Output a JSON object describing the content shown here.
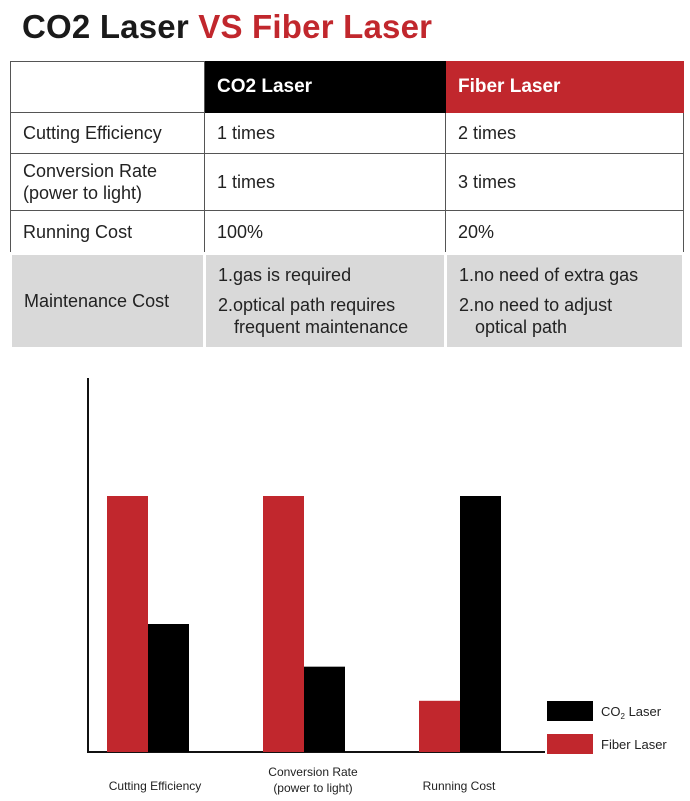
{
  "title": {
    "part1": "CO2 Laser",
    "part2": "VS Fiber Laser"
  },
  "table": {
    "header": {
      "blank": "",
      "co2": "CO2 Laser",
      "fiber": "Fiber Laser"
    },
    "rows": [
      {
        "label": [
          "Cutting Efficiency"
        ],
        "co2": [
          "1 times"
        ],
        "fiber": [
          "2 times"
        ]
      },
      {
        "label": [
          "Conversion Rate",
          "(power to light)"
        ],
        "co2": [
          "1 times"
        ],
        "fiber": [
          "3 times"
        ]
      },
      {
        "label": [
          "Running Cost"
        ],
        "co2": [
          "100%"
        ],
        "fiber": [
          "20%"
        ]
      }
    ],
    "maintenance": {
      "label": "Maintenance Cost",
      "co2": {
        "item1": "1.gas is required",
        "item2_line1": "2.optical path requires",
        "item2_line2": "frequent maintenance"
      },
      "fiber": {
        "item1": "1.no need of extra gas",
        "item2_line1": "2.no need to adjust",
        "item2_line2": "optical path"
      }
    }
  },
  "chart_data": {
    "type": "bar",
    "categories": [
      [
        "Cutting Efficiency"
      ],
      [
        "Conversion Rate",
        "(power to light)"
      ],
      [
        "Running Cost"
      ]
    ],
    "series": [
      {
        "name": "Fiber Laser",
        "color": "#c1272d",
        "values": [
          2,
          3,
          20
        ]
      },
      {
        "name": "CO2 Laser",
        "color": "#000000",
        "values": [
          1,
          1,
          100
        ]
      }
    ],
    "legend": {
      "position": "bottom-right",
      "entries": [
        {
          "text": "CO",
          "sub": "2",
          "suffix": " Laser",
          "color": "#000000"
        },
        {
          "text": "Fiber Laser",
          "sub": "",
          "suffix": "",
          "color": "#c1272d"
        }
      ]
    },
    "title": "",
    "xlabel": "",
    "ylabel": "",
    "grid": false,
    "y_axis_ticks": false
  }
}
